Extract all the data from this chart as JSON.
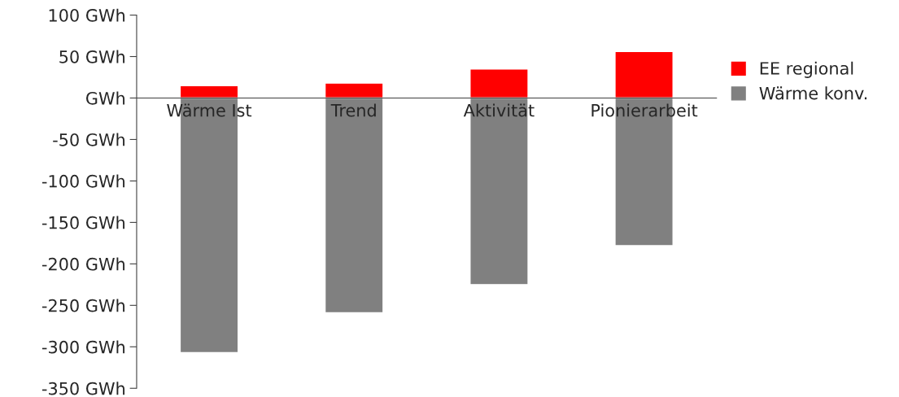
{
  "chart_data": {
    "type": "bar",
    "stacked": true,
    "categories": [
      "Wärme Ist",
      "Trend",
      "Aktivität",
      "Pionierarbeit"
    ],
    "series": [
      {
        "name": "EE regional",
        "color": "#ff0000",
        "values": [
          15,
          18,
          35,
          56
        ]
      },
      {
        "name": "Wärme konv.",
        "color": "#808080",
        "values": [
          -307,
          -259,
          -225,
          -178
        ]
      }
    ],
    "ylim": [
      -350,
      100
    ],
    "yticks": [
      {
        "value": -350,
        "label": "-350 GWh"
      },
      {
        "value": -300,
        "label": "-300 GWh"
      },
      {
        "value": -250,
        "label": "-250 GWh"
      },
      {
        "value": -200,
        "label": "-200 GWh"
      },
      {
        "value": -150,
        "label": "-150 GWh"
      },
      {
        "value": -100,
        "label": "-100 GWh"
      },
      {
        "value": -50,
        "label": "-50 GWh"
      },
      {
        "value": 0,
        "label": "GWh"
      },
      {
        "value": 50,
        "label": "50 GWh"
      },
      {
        "value": 100,
        "label": "100 GWh"
      }
    ],
    "grid": false,
    "legend": "right"
  }
}
